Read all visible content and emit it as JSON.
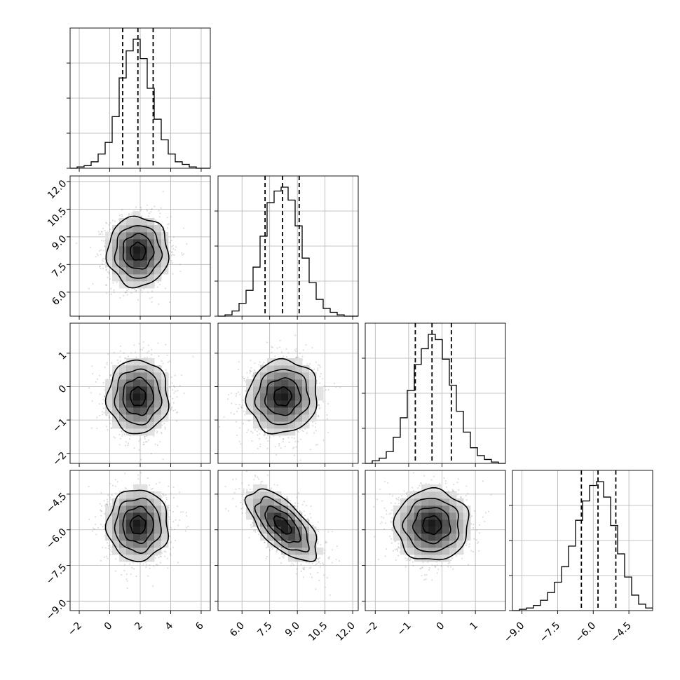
{
  "chart_data": {
    "type": "corner",
    "title": "",
    "parameters": [
      {
        "xlabel": "",
        "range": [
          -2.6,
          6.6
        ],
        "ticks": [
          -2,
          0,
          2,
          4,
          6
        ],
        "tick_labels": [
          "−2",
          "0",
          "2",
          "4",
          "6"
        ],
        "hist_peak": 1.0,
        "quantiles": [
          0.85,
          1.85,
          2.85
        ]
      },
      {
        "xlabel": "",
        "range": [
          4.7,
          12.3
        ],
        "ticks": [
          6.0,
          7.5,
          9.0,
          10.5,
          12.0
        ],
        "tick_labels": [
          "6.0",
          "7.5",
          "9.0",
          "10.5",
          "12.0"
        ],
        "hist_peak": 1.0,
        "quantiles": [
          7.25,
          8.2,
          9.1
        ]
      },
      {
        "xlabel": "",
        "range": [
          -2.3,
          1.9
        ],
        "ticks": [
          -2,
          -1,
          0,
          1
        ],
        "tick_labels": [
          "−2",
          "−1",
          "0",
          "1"
        ],
        "hist_peak": 1.0,
        "quantiles": [
          -0.8,
          -0.3,
          0.28
        ]
      },
      {
        "xlabel": "",
        "range": [
          -9.4,
          -3.5
        ],
        "ticks": [
          -9.0,
          -7.5,
          -6.0,
          -4.5
        ],
        "tick_labels": [
          "−9.0",
          "−7.5",
          "−6.0",
          "−4.5"
        ],
        "hist_peak": 1.0,
        "quantiles": [
          -6.5,
          -5.8,
          -5.05
        ]
      }
    ],
    "histograms": [
      {
        "param": 0,
        "bin_edges": [
          -2.6,
          -2.14,
          -1.68,
          -1.22,
          -0.76,
          -0.3,
          0.16,
          0.62,
          1.08,
          1.54,
          2.0,
          2.46,
          2.92,
          3.38,
          3.84,
          4.3,
          4.76,
          5.22,
          5.68,
          6.14,
          6.6
        ],
        "counts": [
          0.0,
          0.01,
          0.02,
          0.05,
          0.11,
          0.2,
          0.4,
          0.7,
          0.91,
          1.0,
          0.85,
          0.62,
          0.38,
          0.22,
          0.11,
          0.05,
          0.03,
          0.01,
          0.0,
          0.0
        ]
      },
      {
        "param": 1,
        "bin_edges": [
          4.7,
          5.08,
          5.46,
          5.84,
          6.22,
          6.6,
          6.98,
          7.36,
          7.74,
          8.12,
          8.5,
          8.88,
          9.26,
          9.64,
          10.02,
          10.4,
          10.78,
          11.16,
          11.54,
          11.92,
          12.3
        ],
        "counts": [
          0.0,
          0.01,
          0.04,
          0.1,
          0.2,
          0.38,
          0.62,
          0.88,
          0.97,
          1.0,
          0.9,
          0.7,
          0.45,
          0.26,
          0.13,
          0.06,
          0.03,
          0.01,
          0.0,
          0.0
        ]
      },
      {
        "param": 2,
        "bin_edges": [
          -2.3,
          -2.09,
          -1.88,
          -1.67,
          -1.46,
          -1.25,
          -1.04,
          -0.83,
          -0.62,
          -0.41,
          -0.2,
          0.01,
          0.22,
          0.43,
          0.64,
          0.85,
          1.06,
          1.27,
          1.48,
          1.69,
          1.9
        ],
        "counts": [
          0.0,
          0.02,
          0.04,
          0.09,
          0.2,
          0.35,
          0.56,
          0.76,
          0.88,
          0.99,
          0.95,
          0.8,
          0.6,
          0.4,
          0.24,
          0.12,
          0.06,
          0.03,
          0.01,
          0.0
        ]
      },
      {
        "param": 3,
        "bin_edges": [
          -9.4,
          -9.105,
          -8.81,
          -8.515,
          -8.22,
          -7.925,
          -7.63,
          -7.335,
          -7.04,
          -6.745,
          -6.45,
          -6.155,
          -5.86,
          -5.565,
          -5.27,
          -4.975,
          -4.68,
          -4.385,
          -4.09,
          -3.795,
          -3.5
        ],
        "counts": [
          0.0,
          0.01,
          0.02,
          0.04,
          0.08,
          0.14,
          0.22,
          0.34,
          0.5,
          0.7,
          0.85,
          0.97,
          1.0,
          0.88,
          0.66,
          0.44,
          0.26,
          0.12,
          0.05,
          0.02
        ]
      }
    ],
    "pairs": [
      {
        "x_param": 0,
        "y_param": 1,
        "mean": [
          1.85,
          8.2
        ],
        "std": [
          1.0,
          0.95
        ],
        "rho": 0.0
      },
      {
        "x_param": 0,
        "y_param": 2,
        "mean": [
          1.85,
          -0.3
        ],
        "std": [
          1.0,
          0.55
        ],
        "rho": 0.0
      },
      {
        "x_param": 1,
        "y_param": 2,
        "mean": [
          8.2,
          -0.3
        ],
        "std": [
          0.95,
          0.55
        ],
        "rho": 0.05
      },
      {
        "x_param": 0,
        "y_param": 3,
        "mean": [
          1.85,
          -5.8
        ],
        "std": [
          1.0,
          0.75
        ],
        "rho": 0.0
      },
      {
        "x_param": 1,
        "y_param": 3,
        "mean": [
          8.2,
          -5.8
        ],
        "std": [
          0.95,
          0.75
        ],
        "rho": -0.65
      },
      {
        "x_param": 2,
        "y_param": 3,
        "mean": [
          -0.3,
          -5.8
        ],
        "std": [
          0.55,
          0.75
        ],
        "rho": 0.0
      }
    ],
    "contour_levels_sigma": [
      0.5,
      1.0,
      1.5,
      2.0
    ],
    "grid": true,
    "legend": "none"
  },
  "style": {
    "line_color": "#000000",
    "grid_color": "#b0b0b0",
    "scatter_color": "#8a8a8a",
    "density_dark": "#1a1a1a"
  }
}
